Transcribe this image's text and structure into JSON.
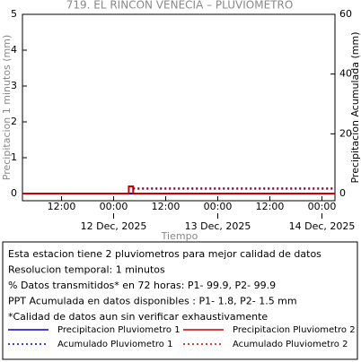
{
  "chart_data": {
    "type": "line",
    "title": "719. EL RINCON VENECIA – PLUVIOMETRO",
    "x_label": "Tiempo",
    "y_label": "Precipitacion 1 minutos (mm)",
    "y2_label": "Precipitacion Acumulada (mm)",
    "xlim": [
      "2025-12-11 03:00",
      "2025-12-14 03:00"
    ],
    "xticks": [
      {
        "value": "2025-12-11 12:00",
        "label": "12:00"
      },
      {
        "value": "2025-12-12 00:00",
        "label": "00:00"
      },
      {
        "value": "2025-12-12 12:00",
        "label": "12:00"
      },
      {
        "value": "2025-12-13 00:00",
        "label": "00:00"
      },
      {
        "value": "2025-12-13 12:00",
        "label": "12:00"
      },
      {
        "value": "2025-12-14 00:00",
        "label": "00:00"
      }
    ],
    "xdate_ticks": [
      {
        "value": "2025-12-12 00:00",
        "label": "12 Dec, 2025"
      },
      {
        "value": "2025-12-13 00:00",
        "label": "13 Dec, 2025"
      },
      {
        "value": "2025-12-14 00:00",
        "label": "14 Dec, 2025"
      }
    ],
    "ylim": [
      -0.2,
      5
    ],
    "yticks": [
      0,
      1,
      2,
      3,
      4,
      5
    ],
    "y2lim": [
      -2.4,
      60
    ],
    "y2ticks": [
      0,
      20,
      40,
      60
    ],
    "series": [
      {
        "name": "Precipitacion Pluviometro 1",
        "color": "#0000cc",
        "style": "solid",
        "x": [
          "2025-12-11 03:00",
          "2025-12-14 03:00"
        ],
        "values": [
          0,
          0
        ]
      },
      {
        "name": "Precipitacion Pluviometro 2",
        "color": "#cc0000",
        "style": "solid",
        "x": [
          "2025-12-11 03:00",
          "2025-12-12 03:30",
          "2025-12-12 03:30",
          "2025-12-12 04:30",
          "2025-12-12 04:30",
          "2025-12-14 03:00"
        ],
        "values": [
          0,
          0,
          0.2,
          0.2,
          0,
          0
        ]
      },
      {
        "name": "Acumulado Pluviometro 1",
        "color": "#0000cc",
        "style": "dotted",
        "axis": "y2",
        "x": [
          "2025-12-12 04:30",
          "2025-12-14 03:00"
        ],
        "values": [
          1.8,
          1.8
        ]
      },
      {
        "name": "Acumulado Pluviometro 2",
        "color": "#cc0000",
        "style": "dotted",
        "axis": "y2",
        "x": [
          "2025-12-12 04:30",
          "2025-12-14 03:00"
        ],
        "values": [
          1.5,
          1.5
        ]
      }
    ],
    "notes": [
      "Esta estacion tiene 2 pluviometros para mejor calidad de datos",
      "Resolucion temporal: 1 minutos",
      "% Datos transmitidos* en 72 horas: P1- 99.9, P2- 99.9",
      "PPT Acumulada en datos disponibles : P1-  1.8, P2-  1.5 mm",
      "*Calidad de datos aun sin verificar exhaustivamente"
    ]
  }
}
